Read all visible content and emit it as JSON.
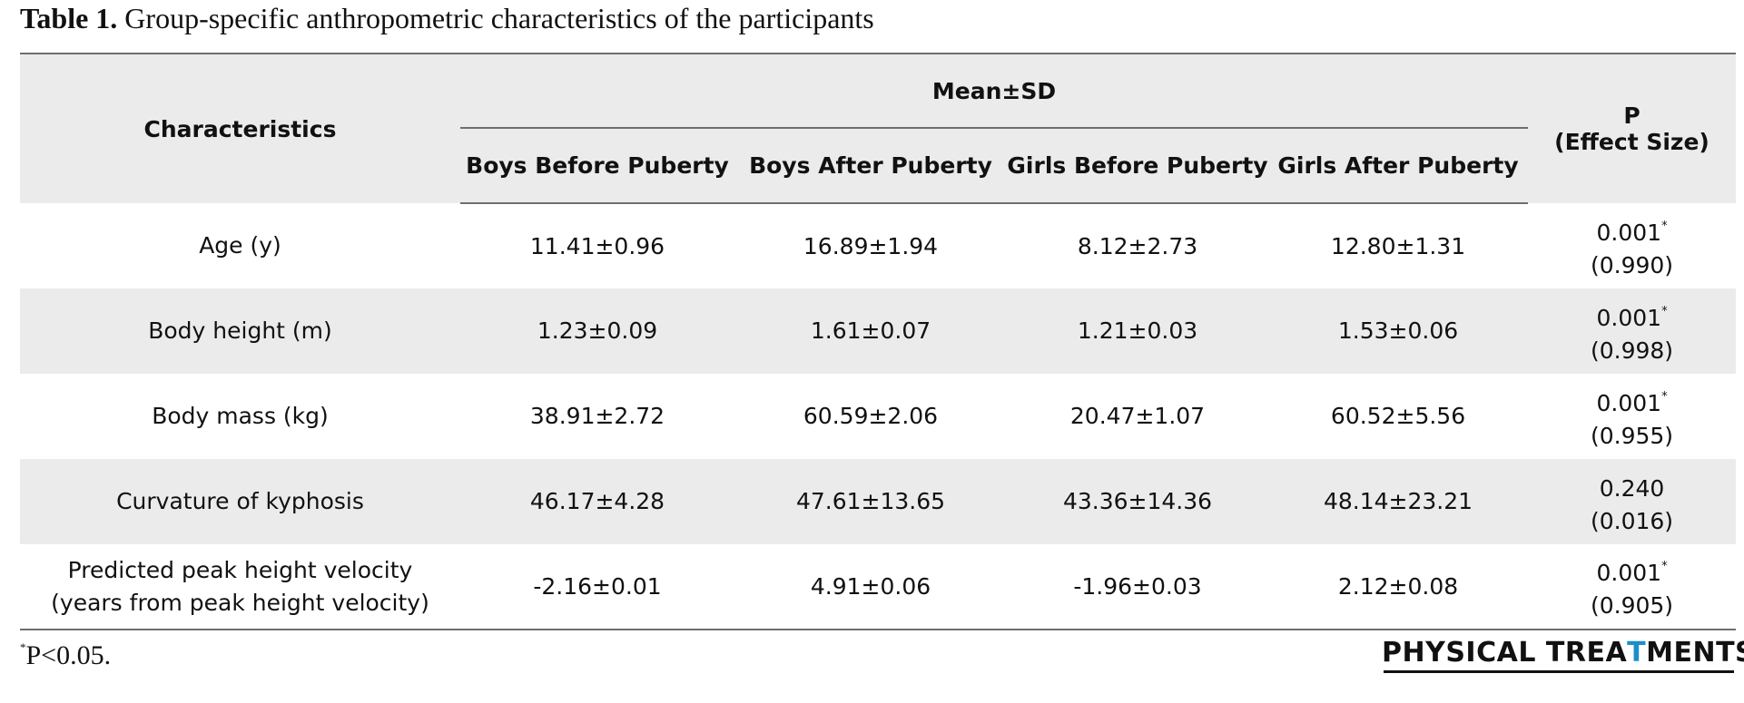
{
  "caption": {
    "label": "Table 1.",
    "title": "Group-specific anthropometric characteristics of the participants"
  },
  "table": {
    "headers": {
      "characteristics": "Characteristics",
      "group": "Mean±SD",
      "subgroups": [
        "Boys Before Puberty",
        "Boys After Puberty",
        "Girls Before Puberty",
        "Girls After Puberty"
      ],
      "p_line1": "P",
      "p_line2": "(Effect Size)"
    },
    "rows": [
      {
        "name": "Age (y)",
        "name2": "",
        "values": [
          "11.41±0.96",
          "16.89±1.94",
          "8.12±2.73",
          "12.80±1.31"
        ],
        "p": "0.001",
        "sig": "*",
        "effect": "(0.990)"
      },
      {
        "name": "Body height (m)",
        "name2": "",
        "values": [
          "1.23±0.09",
          "1.61±0.07",
          "1.21±0.03",
          "1.53±0.06"
        ],
        "p": "0.001",
        "sig": "*",
        "effect": "(0.998)"
      },
      {
        "name": "Body mass (kg)",
        "name2": "",
        "values": [
          "38.91±2.72",
          "60.59±2.06",
          "20.47±1.07",
          "60.52±5.56"
        ],
        "p": "0.001",
        "sig": "*",
        "effect": "(0.955)"
      },
      {
        "name": "Curvature of kyphosis",
        "name2": "",
        "values": [
          "46.17±4.28",
          "47.61±13.65",
          "43.36±14.36",
          "48.14±23.21"
        ],
        "p": "0.240",
        "sig": "",
        "effect": "(0.016)"
      },
      {
        "name": "Predicted peak height velocity",
        "name2": "(years from peak height velocity)",
        "values": [
          "-2.16±0.01",
          "4.91±0.06",
          "-1.96±0.03",
          "2.12±0.08"
        ],
        "p": "0.001",
        "sig": "*",
        "effect": "(0.905)"
      }
    ]
  },
  "footnote": {
    "marker": "*",
    "text": "P<0.05."
  },
  "logo": {
    "part1": "PHYSICAL TREA",
    "figure": "T",
    "part2": "MENTS",
    "accent_color": "#1a8fc8"
  }
}
